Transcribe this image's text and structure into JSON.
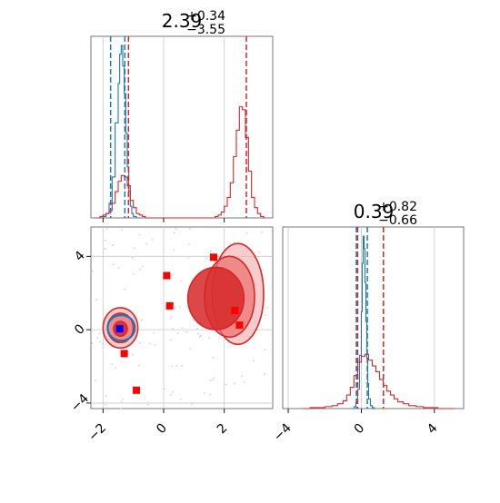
{
  "chart_data": [
    {
      "type": "histogram",
      "panel": "marginal-param-1",
      "title": {
        "value": "2.39",
        "plus": "+0.34",
        "minus": "−3.55"
      },
      "xlim": [
        -2.4,
        3.6
      ],
      "grid": true,
      "series": [
        {
          "name": "",
          "color": "#1f77b4",
          "bins": [
            -2.3,
            -2.2,
            -2.1,
            -2.0,
            -1.9,
            -1.8,
            -1.7,
            -1.6,
            -1.5,
            -1.45,
            -1.4,
            -1.35,
            -1.3,
            -1.25,
            -1.2,
            -1.15,
            -1.1,
            -1.05,
            -1.0,
            -0.9,
            -0.8
          ],
          "counts": [
            0,
            0,
            0,
            1,
            3,
            10,
            28,
            65,
            92,
            112,
            118,
            104,
            85,
            58,
            35,
            18,
            8,
            3,
            1,
            0,
            0
          ]
        },
        {
          "name": "",
          "color": "#d62728",
          "bins": [
            -2.2,
            -2.1,
            -2.0,
            -1.9,
            -1.8,
            -1.7,
            -1.6,
            -1.5,
            -1.4,
            -1.3,
            -1.2,
            -1.1,
            -1.0,
            -0.9,
            -0.8,
            -0.7,
            -0.6,
            -0.5,
            0.0,
            0.5,
            1.0,
            1.5,
            1.7,
            1.8,
            1.9,
            2.0,
            2.1,
            2.2,
            2.3,
            2.4,
            2.5,
            2.6,
            2.7,
            2.8,
            2.9,
            3.0,
            3.1,
            3.2,
            3.3
          ],
          "counts": [
            0,
            1,
            2,
            3,
            5,
            10,
            18,
            25,
            29,
            28,
            22,
            12,
            7,
            3,
            2,
            1,
            0,
            0,
            0,
            0,
            0,
            0,
            1,
            2,
            4,
            8,
            14,
            24,
            42,
            60,
            76,
            74,
            55,
            32,
            14,
            7,
            3,
            1,
            0
          ]
        }
      ],
      "vlines": [
        {
          "x": -1.75,
          "color": "#1f77b4"
        },
        {
          "x": -1.28,
          "color": "#1f77b4"
        },
        {
          "x": -1.16,
          "color": "#d62728"
        },
        {
          "x": 2.73,
          "color": "#d62728"
        }
      ]
    },
    {
      "type": "contour-scatter",
      "panel": "joint",
      "xlim": [
        -2.4,
        3.6
      ],
      "ylim": [
        -4.3,
        5.6
      ],
      "xticks": [
        "−2",
        "0",
        "2"
      ],
      "yticks": [
        "−4",
        "0",
        "4"
      ],
      "grid": true,
      "clusters": [
        {
          "name": "",
          "color": "#d62728",
          "center": [
            2.45,
            0.75
          ],
          "levels": [
            [
              1.6,
              3.3,
              3.8,
              -0.8,
              4.7
            ],
            [
              1.35,
              3.0,
              3.1,
              -0.4,
              4.0
            ],
            [
              0.8,
              2.65,
              2.05,
              0.0,
              3.4
            ]
          ]
        },
        {
          "name": "",
          "color": "#d62728",
          "center": [
            -1.45,
            0.05
          ],
          "levels": [
            [
              -2.0,
              -0.85,
              -1.2,
              -1.0,
              1.2
            ],
            [
              -1.85,
              -1.0,
              -1.0,
              -0.7,
              0.9
            ],
            [
              -1.65,
              -1.2,
              -0.5,
              -0.35,
              0.45
            ]
          ]
        },
        {
          "name": "",
          "color": "#1f77b4",
          "center": [
            -1.4,
            0.1
          ],
          "levels": [
            [
              -1.85,
              -0.95,
              -0.35,
              -0.6,
              0.8
            ]
          ]
        }
      ],
      "markers_red": [
        [
          1.65,
          3.95
        ],
        [
          0.1,
          2.95
        ],
        [
          0.2,
          1.3
        ],
        [
          2.35,
          1.05
        ],
        [
          2.5,
          0.25
        ],
        [
          -1.3,
          -1.3
        ],
        [
          -0.9,
          -3.3
        ]
      ],
      "markers_blue": [
        [
          -1.45,
          0.05
        ]
      ]
    },
    {
      "type": "histogram",
      "panel": "marginal-param-2",
      "title": {
        "value": "0.39",
        "plus": "+0.82",
        "minus": "−0.66"
      },
      "xlim": [
        -4.3,
        5.6
      ],
      "xticks": [
        "−4",
        "0",
        "4"
      ],
      "grid": true,
      "series": [
        {
          "name": "",
          "color": "#1f77b4",
          "bins": [
            -0.5,
            -0.4,
            -0.3,
            -0.2,
            -0.1,
            0.0,
            0.05,
            0.1,
            0.15,
            0.2,
            0.25,
            0.3,
            0.35,
            0.4,
            0.5,
            0.6,
            0.7
          ],
          "counts": [
            0,
            2,
            6,
            20,
            55,
            100,
            150,
            178,
            165,
            130,
            90,
            52,
            26,
            10,
            3,
            1,
            0
          ]
        },
        {
          "name": "",
          "color": "#d62728",
          "bins": [
            -3.2,
            -2.8,
            -2.4,
            -2.0,
            -1.6,
            -1.3,
            -1.0,
            -0.8,
            -0.6,
            -0.4,
            -0.2,
            0.0,
            0.2,
            0.4,
            0.6,
            0.8,
            1.0,
            1.2,
            1.4,
            1.6,
            1.8,
            2.0,
            2.3,
            2.6,
            3.0,
            3.4,
            3.8,
            4.2,
            4.6,
            5.0
          ],
          "counts": [
            0,
            1,
            1,
            2,
            3,
            5,
            8,
            14,
            22,
            34,
            48,
            54,
            56,
            50,
            44,
            38,
            30,
            24,
            18,
            14,
            10,
            7,
            5,
            3,
            2,
            1,
            1,
            0,
            0,
            0
          ]
        }
      ],
      "vlines": [
        {
          "x": -0.27,
          "color": "#1f77b4"
        },
        {
          "x": -0.2,
          "color": "#d62728"
        },
        {
          "x": 0.33,
          "color": "#1f77b4"
        },
        {
          "x": 1.21,
          "color": "#d62728"
        }
      ]
    }
  ]
}
